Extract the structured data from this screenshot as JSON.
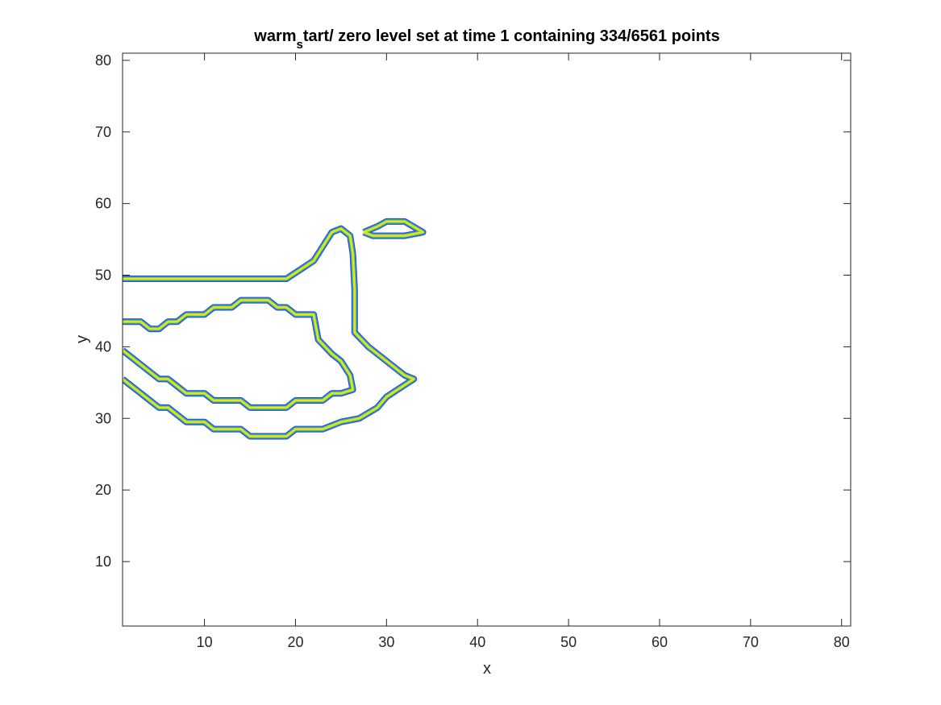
{
  "chart_data": {
    "type": "contour",
    "title": {
      "prefix": "warm",
      "subscript": "s",
      "suffix": "tart/ zero level set at time 1 containing 334/6561 points"
    },
    "xlabel": "x",
    "ylabel": "y",
    "xlim": [
      1,
      81
    ],
    "ylim": [
      1,
      81
    ],
    "xticks": [
      10,
      20,
      30,
      40,
      50,
      60,
      70,
      80
    ],
    "yticks": [
      10,
      20,
      30,
      40,
      50,
      60,
      70,
      80
    ],
    "grid": false,
    "box": true,
    "colors": {
      "band_inner": "#2E3BE0",
      "band_mid1": "#1F8AD6",
      "band_mid2": "#2BBFA4",
      "band_mid3": "#9FCB3C",
      "band_outer": "#F4E10B",
      "axis": "#262626"
    },
    "contours": [
      {
        "name": "region-boundary-top",
        "points": [
          [
            1,
            49.5
          ],
          [
            19,
            49.5
          ],
          [
            22,
            52
          ],
          [
            22.5,
            53
          ],
          [
            23,
            54
          ],
          [
            24,
            56
          ],
          [
            25,
            56.5
          ],
          [
            26,
            55.5
          ],
          [
            26.3,
            53
          ],
          [
            26.5,
            48
          ],
          [
            26.5,
            42
          ],
          [
            28,
            40
          ],
          [
            32,
            36
          ],
          [
            33,
            35.5
          ],
          [
            30,
            33
          ],
          [
            29,
            31.5
          ],
          [
            27,
            30
          ],
          [
            25,
            29.5
          ],
          [
            23,
            28.5
          ],
          [
            20,
            28.5
          ],
          [
            19,
            27.5
          ],
          [
            15,
            27.5
          ],
          [
            14,
            28.5
          ],
          [
            11,
            28.5
          ],
          [
            10,
            29.5
          ],
          [
            8,
            29.5
          ],
          [
            6,
            31.5
          ],
          [
            5,
            31.5
          ],
          [
            1,
            35.5
          ]
        ]
      },
      {
        "name": "region-boundary-bottom",
        "points": [
          [
            1,
            43.5
          ],
          [
            3,
            43.5
          ],
          [
            4,
            42.5
          ],
          [
            5,
            42.5
          ],
          [
            6,
            43.5
          ],
          [
            7,
            43.5
          ],
          [
            8,
            44.5
          ],
          [
            10,
            44.5
          ],
          [
            11,
            45.5
          ],
          [
            13,
            45.5
          ],
          [
            14,
            46.5
          ],
          [
            17,
            46.5
          ],
          [
            18,
            45.5
          ],
          [
            19,
            45.5
          ],
          [
            20,
            44.5
          ],
          [
            22,
            44.5
          ],
          [
            22.5,
            41
          ],
          [
            24,
            39
          ],
          [
            25,
            38
          ],
          [
            26,
            36
          ],
          [
            26.3,
            34
          ],
          [
            25,
            33.5
          ],
          [
            24,
            33.5
          ],
          [
            23,
            32.5
          ],
          [
            20,
            32.5
          ],
          [
            19,
            31.5
          ],
          [
            15,
            31.5
          ],
          [
            14,
            32.5
          ],
          [
            11,
            32.5
          ],
          [
            10,
            33.5
          ],
          [
            8,
            33.5
          ],
          [
            6,
            35.5
          ],
          [
            5,
            35.5
          ],
          [
            1,
            39.5
          ]
        ]
      },
      {
        "name": "small-island",
        "points": [
          [
            27.5,
            56
          ],
          [
            29,
            56.8
          ],
          [
            30,
            57.5
          ],
          [
            32,
            57.5
          ],
          [
            34,
            56
          ],
          [
            32,
            55.5
          ],
          [
            28.5,
            55.5
          ],
          [
            27.5,
            56
          ]
        ]
      }
    ]
  }
}
